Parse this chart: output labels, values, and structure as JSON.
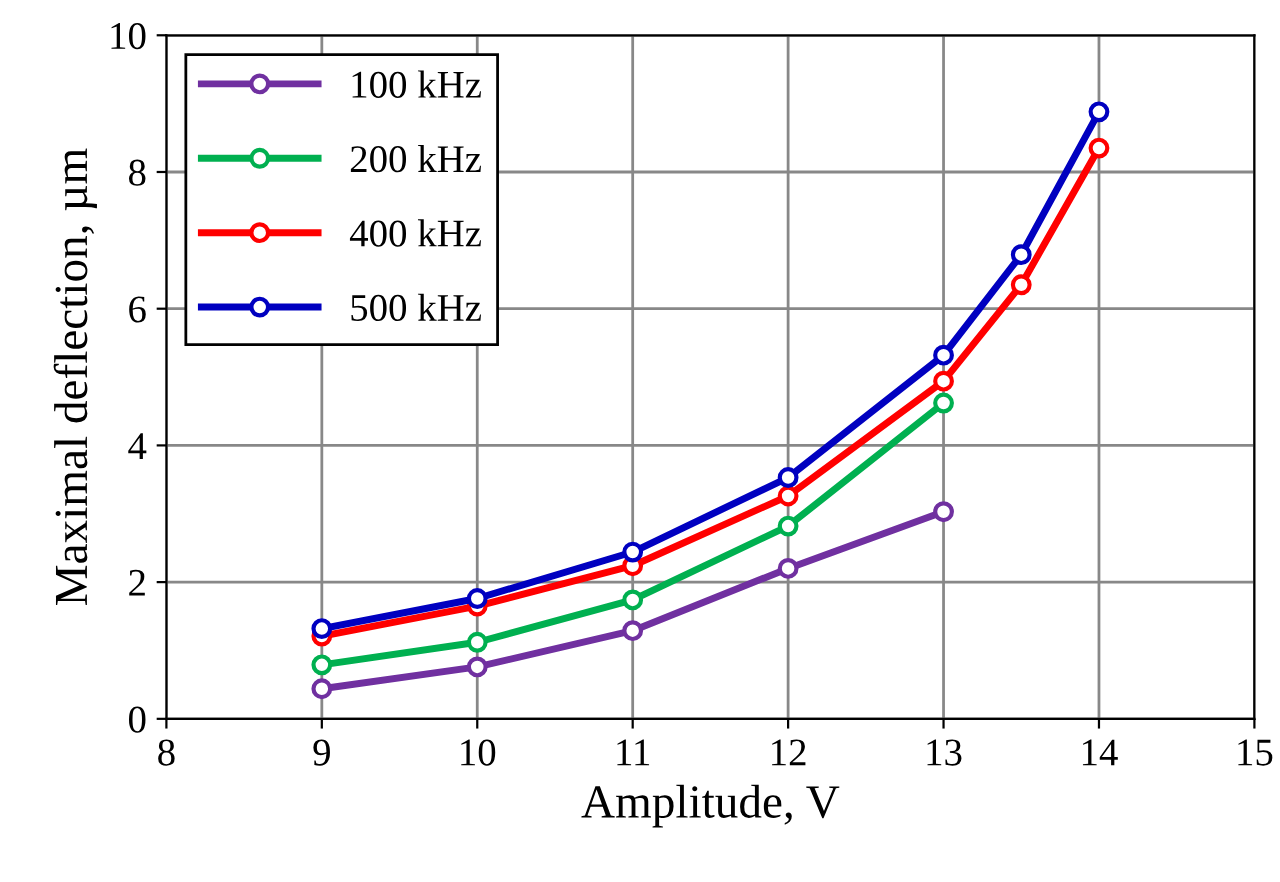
{
  "chart_data": {
    "type": "line",
    "xlabel": "Amplitude, V",
    "ylabel": "Maximal deflection, µm",
    "xlim": [
      8,
      15
    ],
    "xticks": [
      8,
      9,
      10,
      11,
      12,
      13,
      14,
      15
    ],
    "ylim": [
      0,
      10
    ],
    "yticks": [
      0,
      2,
      4,
      6,
      8,
      10
    ],
    "grid": true,
    "legend": "top left",
    "marker": "circle",
    "line_style": "solid",
    "series": [
      {
        "name": "100 kHz",
        "color": "#7030a0",
        "x": [
          9,
          10,
          11,
          12,
          13
        ],
        "values": [
          0.44,
          0.76,
          1.29,
          2.2,
          3.03
        ]
      },
      {
        "name": "200 kHz",
        "color": "#00b050",
        "x": [
          9,
          10,
          11,
          12,
          13
        ],
        "values": [
          0.79,
          1.12,
          1.74,
          2.82,
          4.62
        ]
      },
      {
        "name": "400 kHz",
        "color": "#ff0000",
        "x": [
          9,
          10,
          11,
          12,
          13,
          13.5,
          14
        ],
        "values": [
          1.21,
          1.65,
          2.24,
          3.26,
          4.94,
          6.35,
          8.35
        ]
      },
      {
        "name": "500 kHz",
        "color": "#0000c0",
        "x": [
          9,
          10,
          11,
          12,
          13,
          13.5,
          14
        ],
        "values": [
          1.32,
          1.76,
          2.44,
          3.53,
          5.32,
          6.79,
          8.88
        ]
      }
    ]
  }
}
